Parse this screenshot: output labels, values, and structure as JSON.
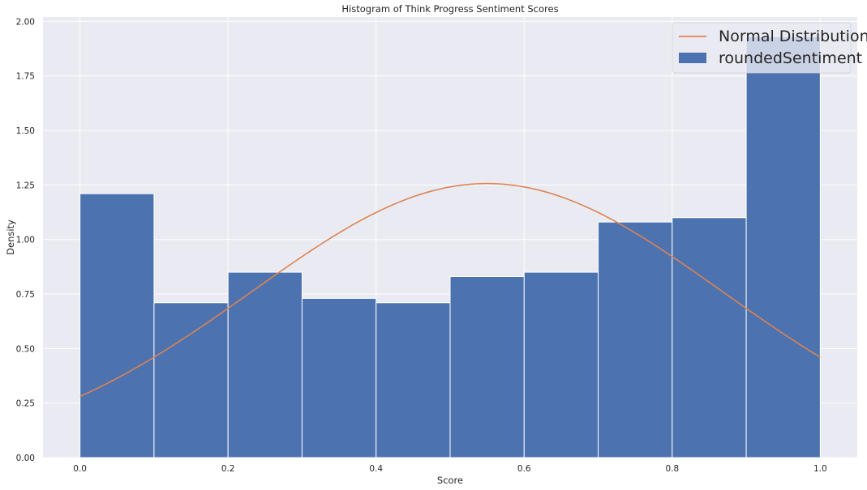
{
  "chart_data": {
    "type": "bar",
    "title": "Histogram of Think Progress Sentiment Scores",
    "xlabel": "Score",
    "ylabel": "Density",
    "xlim": [
      -0.05,
      1.05
    ],
    "ylim": [
      0,
      2.02
    ],
    "grid": true,
    "legend_position": "top-right",
    "x_ticks": [
      "0.0",
      "0.2",
      "0.4",
      "0.6",
      "0.8",
      "1.0"
    ],
    "x_tick_values": [
      0,
      0.2,
      0.4,
      0.6,
      0.8,
      1.0
    ],
    "y_ticks": [
      "0.00",
      "0.25",
      "0.50",
      "0.75",
      "1.00",
      "1.25",
      "1.50",
      "1.75",
      "2.00"
    ],
    "y_tick_values": [
      0,
      0.25,
      0.5,
      0.75,
      1.0,
      1.25,
      1.5,
      1.75,
      2.0
    ],
    "bins": [
      {
        "x0": 0.0,
        "x1": 0.1,
        "density": 1.21
      },
      {
        "x0": 0.1,
        "x1": 0.2,
        "density": 0.71
      },
      {
        "x0": 0.2,
        "x1": 0.3,
        "density": 0.85
      },
      {
        "x0": 0.3,
        "x1": 0.4,
        "density": 0.73
      },
      {
        "x0": 0.4,
        "x1": 0.5,
        "density": 0.71
      },
      {
        "x0": 0.5,
        "x1": 0.6,
        "density": 0.83
      },
      {
        "x0": 0.6,
        "x1": 0.7,
        "density": 0.85
      },
      {
        "x0": 0.7,
        "x1": 0.8,
        "density": 1.08
      },
      {
        "x0": 0.8,
        "x1": 0.9,
        "density": 1.1
      },
      {
        "x0": 0.9,
        "x1": 1.0,
        "density": 1.93
      }
    ],
    "normal_curve": {
      "mean": 0.55,
      "std": 0.3175
    },
    "series": [
      {
        "name": "Normal Distribution",
        "type": "line",
        "color": "#dd8452"
      },
      {
        "name": "roundedSentiment",
        "type": "bar",
        "color": "#4c72b0"
      }
    ],
    "colors": {
      "plot_background": "#eaeaf2",
      "grid": "#ffffff"
    }
  }
}
